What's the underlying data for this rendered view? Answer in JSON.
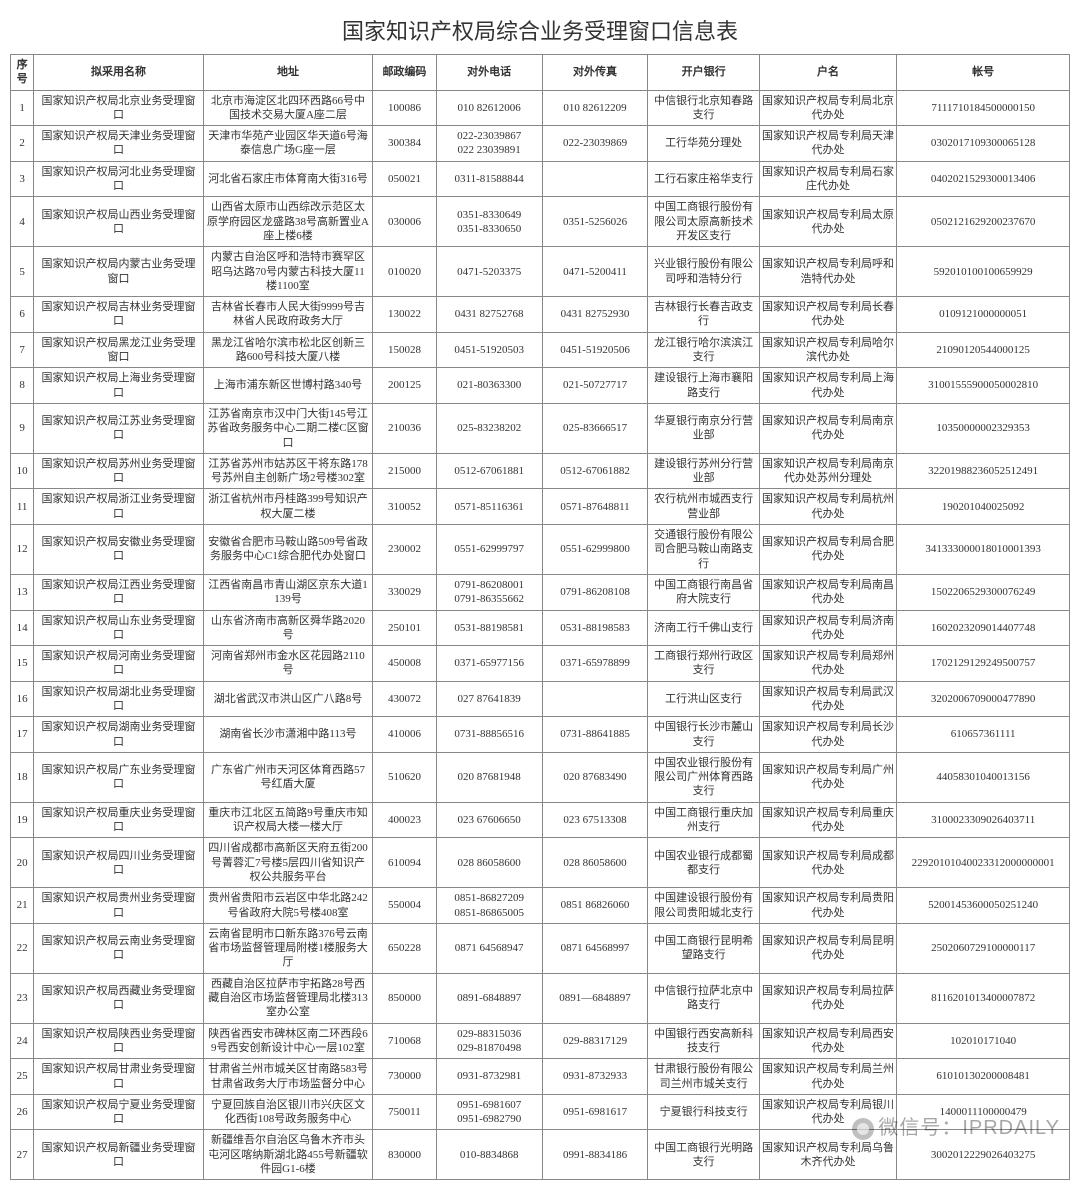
{
  "title": "国家知识产权局综合业务受理窗口信息表",
  "watermark": "微信号：IPRDAILY",
  "columns": [
    "序号",
    "拟采用名称",
    "地址",
    "邮政编码",
    "对外电话",
    "对外传真",
    "开户银行",
    "户名",
    "帐号"
  ],
  "rows": [
    {
      "seq": "1",
      "name": "国家知识产权局北京业务受理窗口",
      "addr": "北京市海淀区北四环西路66号中国技术交易大厦A座二层",
      "post": "100086",
      "tel": "010 82612006",
      "fax": "010 82612209",
      "bank": "中信银行北京知春路支行",
      "acctname": "国家知识产权局专利局北京代办处",
      "acct": "7111710184500000150"
    },
    {
      "seq": "2",
      "name": "国家知识产权局天津业务受理窗口",
      "addr": "天津市华苑产业园区华天道6号海泰信息广场G座一层",
      "post": "300384",
      "tel": "022-23039867\n022 23039891",
      "fax": "022-23039869",
      "bank": "工行华苑分理处",
      "acctname": "国家知识产权局专利局天津代办处",
      "acct": "0302017109300065128"
    },
    {
      "seq": "3",
      "name": "国家知识产权局河北业务受理窗口",
      "addr": "河北省石家庄市体育南大街316号",
      "post": "050021",
      "tel": "0311-81588844",
      "fax": "",
      "bank": "工行石家庄裕华支行",
      "acctname": "国家知识产权局专利局石家庄代办处",
      "acct": "0402021529300013406"
    },
    {
      "seq": "4",
      "name": "国家知识产权局山西业务受理窗口",
      "addr": "山西省太原市山西综改示范区太原学府园区龙盛路38号高新置业A座上楼6楼",
      "post": "030006",
      "tel": "0351-8330649\n0351-8330650",
      "fax": "0351-5256026",
      "bank": "中国工商银行股份有限公司太原高新技术开发区支行",
      "acctname": "国家知识产权局专利局太原代办处",
      "acct": "0502121629200237670"
    },
    {
      "seq": "5",
      "name": "国家知识产权局内蒙古业务受理窗口",
      "addr": "内蒙古自治区呼和浩特市赛罕区昭乌达路70号内蒙古科技大厦11楼1100室",
      "post": "010020",
      "tel": "0471-5203375",
      "fax": "0471-5200411",
      "bank": "兴业银行股份有限公司呼和浩特分行",
      "acctname": "国家知识产权局专利局呼和浩特代办处",
      "acct": "592010100100659929"
    },
    {
      "seq": "6",
      "name": "国家知识产权局吉林业务受理窗口",
      "addr": "吉林省长春市人民大街9999号吉林省人民政府政务大厅",
      "post": "130022",
      "tel": "0431 82752768",
      "fax": "0431 82752930",
      "bank": "吉林银行长春吉政支行",
      "acctname": "国家知识产权局专利局长春代办处",
      "acct": "0109121000000051"
    },
    {
      "seq": "7",
      "name": "国家知识产权局黑龙江业务受理窗口",
      "addr": "黑龙江省哈尔滨市松北区创新三路600号科技大厦八楼",
      "post": "150028",
      "tel": "0451-51920503",
      "fax": "0451-51920506",
      "bank": "龙江银行哈尔滨滨江支行",
      "acctname": "国家知识产权局专利局哈尔滨代办处",
      "acct": "21090120544000125"
    },
    {
      "seq": "8",
      "name": "国家知识产权局上海业务受理窗口",
      "addr": "上海市浦东新区世博村路340号",
      "post": "200125",
      "tel": "021-80363300",
      "fax": "021-50727717",
      "bank": "建设银行上海市襄阳路支行",
      "acctname": "国家知识产权局专利局上海代办处",
      "acct": "31001555900050002810"
    },
    {
      "seq": "9",
      "name": "国家知识产权局江苏业务受理窗口",
      "addr": "江苏省南京市汉中门大街145号江苏省政务服务中心二期二楼C区窗口",
      "post": "210036",
      "tel": "025-83238202",
      "fax": "025-83666517",
      "bank": "华夏银行南京分行营业部",
      "acctname": "国家知识产权局专利局南京代办处",
      "acct": "10350000002329353"
    },
    {
      "seq": "10",
      "name": "国家知识产权局苏州业务受理窗口",
      "addr": "江苏省苏州市姑苏区干将东路178号苏州自主创新广场2号楼302室",
      "post": "215000",
      "tel": "0512-67061881",
      "fax": "0512-67061882",
      "bank": "建设银行苏州分行营业部",
      "acctname": "国家知识产权局专利局南京代办处苏州分理处",
      "acct": "32201988236052512491"
    },
    {
      "seq": "11",
      "name": "国家知识产权局浙江业务受理窗口",
      "addr": "浙江省杭州市丹桂路399号知识产权大厦二楼",
      "post": "310052",
      "tel": "0571-85116361",
      "fax": "0571-87648811",
      "bank": "农行杭州市城西支行营业部",
      "acctname": "国家知识产权局专利局杭州代办处",
      "acct": "190201040025092"
    },
    {
      "seq": "12",
      "name": "国家知识产权局安徽业务受理窗口",
      "addr": "安徽省合肥市马鞍山路509号省政务服务中心C1综合肥代办处窗口",
      "post": "230002",
      "tel": "0551-62999797",
      "fax": "0551-62999800",
      "bank": "交通银行股份有限公司合肥马鞍山南路支行",
      "acctname": "国家知识产权局专利局合肥代办处",
      "acct": "341333000018010001393"
    },
    {
      "seq": "13",
      "name": "国家知识产权局江西业务受理窗口",
      "addr": "江西省南昌市青山湖区京东大道1139号",
      "post": "330029",
      "tel": "0791-86208001\n0791-86355662",
      "fax": "0791-86208108",
      "bank": "中国工商银行南昌省府大院支行",
      "acctname": "国家知识产权局专利局南昌代办处",
      "acct": "1502206529300076249"
    },
    {
      "seq": "14",
      "name": "国家知识产权局山东业务受理窗口",
      "addr": "山东省济南市高新区舜华路2020号",
      "post": "250101",
      "tel": "0531-88198581",
      "fax": "0531-88198583",
      "bank": "济南工行千佛山支行",
      "acctname": "国家知识产权局专利局济南代办处",
      "acct": "1602023209014407748"
    },
    {
      "seq": "15",
      "name": "国家知识产权局河南业务受理窗口",
      "addr": "河南省郑州市金水区花园路2110号",
      "post": "450008",
      "tel": "0371-65977156",
      "fax": "0371-65978899",
      "bank": "工商银行郑州行政区支行",
      "acctname": "国家知识产权局专利局郑州代办处",
      "acct": "1702129129249500757"
    },
    {
      "seq": "16",
      "name": "国家知识产权局湖北业务受理窗口",
      "addr": "湖北省武汉市洪山区广八路8号",
      "post": "430072",
      "tel": "027 87641839",
      "fax": "",
      "bank": "工行洪山区支行",
      "acctname": "国家知识产权局专利局武汉代办处",
      "acct": "3202006709000477890"
    },
    {
      "seq": "17",
      "name": "国家知识产权局湖南业务受理窗口",
      "addr": "湖南省长沙市潇湘中路113号",
      "post": "410006",
      "tel": "0731-88856516",
      "fax": "0731-88641885",
      "bank": "中国银行长沙市麓山支行",
      "acctname": "国家知识产权局专利局长沙代办处",
      "acct": "610657361111"
    },
    {
      "seq": "18",
      "name": "国家知识产权局广东业务受理窗口",
      "addr": "广东省广州市天河区体育西路57号红盾大厦",
      "post": "510620",
      "tel": "020 87681948",
      "fax": "020 87683490",
      "bank": "中国农业银行股份有限公司广州体育西路支行",
      "acctname": "国家知识产权局专利局广州代办处",
      "acct": "44058301040013156"
    },
    {
      "seq": "19",
      "name": "国家知识产权局重庆业务受理窗口",
      "addr": "重庆市江北区五简路9号重庆市知识产权局大楼一楼大厅",
      "post": "400023",
      "tel": "023 67606650",
      "fax": "023 67513308",
      "bank": "中国工商银行重庆加州支行",
      "acctname": "国家知识产权局专利局重庆代办处",
      "acct": "3100023309026403711"
    },
    {
      "seq": "20",
      "name": "国家知识产权局四川业务受理窗口",
      "addr": "四川省成都市高新区天府五街200号菁蓉汇7号楼5层四川省知识产权公共服务平台",
      "post": "610094",
      "tel": "028 86058600",
      "fax": "028 86058600",
      "bank": "中国农业银行成都蜀都支行",
      "acctname": "国家知识产权局专利局成都代办处",
      "acct": "22920101040023312000000001"
    },
    {
      "seq": "21",
      "name": "国家知识产权局贵州业务受理窗口",
      "addr": "贵州省贵阳市云岩区中华北路242号省政府大院5号楼408室",
      "post": "550004",
      "tel": "0851-86827209\n0851-86865005",
      "fax": "0851 86826060",
      "bank": "中国建设银行股份有限公司贵阳城北支行",
      "acctname": "国家知识产权局专利局贵阳代办处",
      "acct": "52001453600050251240"
    },
    {
      "seq": "22",
      "name": "国家知识产权局云南业务受理窗口",
      "addr": "云南省昆明市口新东路376号云南省市场监督管理局附楼1楼服务大厅",
      "post": "650228",
      "tel": "0871 64568947",
      "fax": "0871 64568997",
      "bank": "中国工商银行昆明希望路支行",
      "acctname": "国家知识产权局专利局昆明代办处",
      "acct": "2502060729100000117"
    },
    {
      "seq": "23",
      "name": "国家知识产权局西藏业务受理窗口",
      "addr": "西藏自治区拉萨市宇拓路28号西藏自治区市场监督管理局北楼313室办公室",
      "post": "850000",
      "tel": "0891-6848897",
      "fax": "0891—6848897",
      "bank": "中信银行拉萨北京中路支行",
      "acctname": "国家知识产权局专利局拉萨代办处",
      "acct": "8116201013400007872"
    },
    {
      "seq": "24",
      "name": "国家知识产权局陕西业务受理窗口",
      "addr": "陕西省西安市碑林区南二环西段69号西安创新设计中心一层102室",
      "post": "710068",
      "tel": "029-88315036\n029-81870498",
      "fax": "029-88317129",
      "bank": "中国银行西安高新科技支行",
      "acctname": "国家知识产权局专利局西安代办处",
      "acct": "102010171040"
    },
    {
      "seq": "25",
      "name": "国家知识产权局甘肃业务受理窗口",
      "addr": "甘肃省兰州市城关区甘南路583号甘肃省政务大厅市场监督分中心",
      "post": "730000",
      "tel": "0931-8732981",
      "fax": "0931-8732933",
      "bank": "甘肃银行股份有限公司兰州市城关支行",
      "acctname": "国家知识产权局专利局兰州代办处",
      "acct": "61010130200008481"
    },
    {
      "seq": "26",
      "name": "国家知识产权局宁夏业务受理窗口",
      "addr": "宁夏回族自治区银川市兴庆区文化西街108号政务服务中心",
      "post": "750011",
      "tel": "0951-6981607\n0951-6982790",
      "fax": "0951-6981617",
      "bank": "宁夏银行科技支行",
      "acctname": "国家知识产权局专利局银川代办处",
      "acct": "1400011100000479"
    },
    {
      "seq": "27",
      "name": "国家知识产权局新疆业务受理窗口",
      "addr": "新疆维吾尔自治区乌鲁木齐市头屯河区喀纳斯湖北路455号新疆软件园G1-6楼",
      "post": "830000",
      "tel": "010-8834868",
      "fax": "0991-8834186",
      "bank": "中国工商银行光明路支行",
      "acctname": "国家知识产权局专利局乌鲁木齐代办处",
      "acct": "3002012229026403275"
    }
  ]
}
